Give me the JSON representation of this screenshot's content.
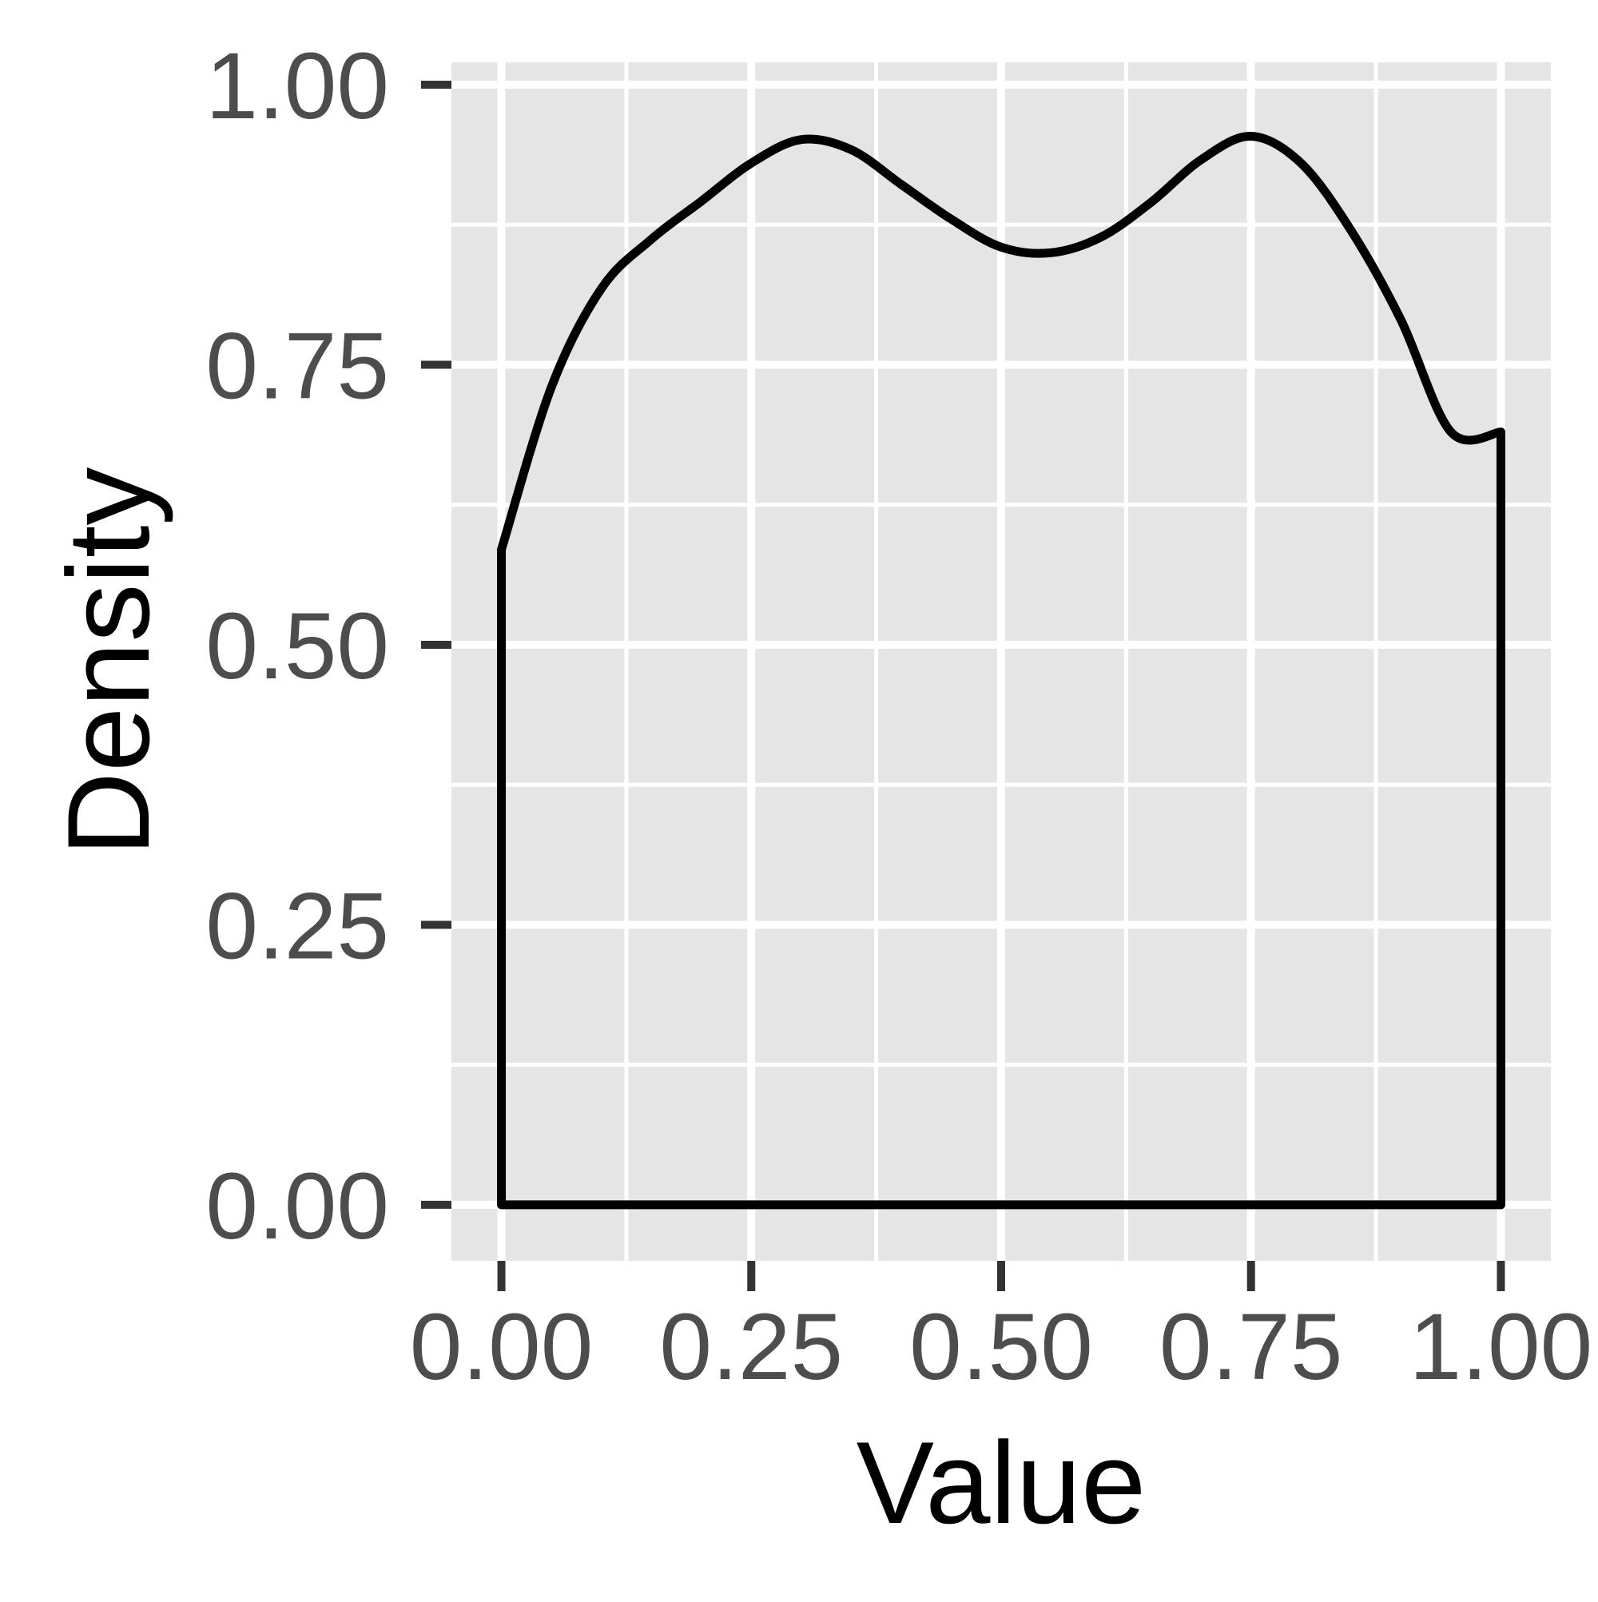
{
  "colors": {
    "panel_background": "#e5e5e5",
    "grid": "#ffffff",
    "tick_mark": "#333333",
    "tick_label": "#4d4d4d",
    "axis_title": "#000000",
    "density_line": "#000000"
  },
  "chart_data": {
    "type": "area",
    "geom": "density outline (unfilled)",
    "xlabel": "Value",
    "ylabel": "Density",
    "xlim": [
      -0.05,
      1.05
    ],
    "ylim": [
      -0.05,
      1.02
    ],
    "x_ticks": [
      0,
      0.25,
      0.5,
      0.75,
      1
    ],
    "x_tick_labels": [
      "0.00",
      "0.25",
      "0.50",
      "0.75",
      "1.00"
    ],
    "y_ticks": [
      0,
      0.25,
      0.5,
      0.75,
      1
    ],
    "y_tick_labels": [
      "0.00",
      "0.25",
      "0.50",
      "0.75",
      "1.00"
    ],
    "grid": true,
    "legend": "none",
    "series": [
      {
        "x": [
          0.0,
          0.05,
          0.1,
          0.15,
          0.2,
          0.25,
          0.3,
          0.35,
          0.4,
          0.45,
          0.5,
          0.55,
          0.6,
          0.65,
          0.7,
          0.75,
          0.8,
          0.85,
          0.9,
          0.95,
          1.0
        ],
        "y": [
          0.585,
          0.73,
          0.818,
          0.862,
          0.896,
          0.93,
          0.951,
          0.942,
          0.911,
          0.88,
          0.855,
          0.85,
          0.864,
          0.895,
          0.933,
          0.954,
          0.93,
          0.87,
          0.79,
          0.69,
          0.69
        ]
      }
    ]
  }
}
